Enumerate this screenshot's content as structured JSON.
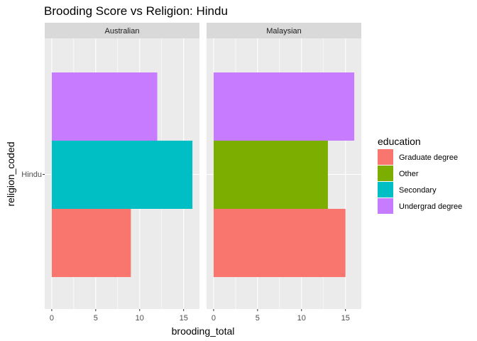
{
  "chart_data": {
    "type": "bar",
    "orientation": "horizontal",
    "title": "Brooding Score vs Religion: Hindu",
    "xlabel": "brooding_total",
    "ylabel": "religion_coded",
    "xlim": [
      -0.8,
      16.8
    ],
    "x_ticks": [
      0,
      5,
      10,
      15
    ],
    "categories": [
      "Hindu"
    ],
    "grid": true,
    "legend_position": "right",
    "legend_title": "education",
    "legend": [
      {
        "name": "Graduate degree",
        "color": "#F8766D"
      },
      {
        "name": "Other",
        "color": "#7CAE00"
      },
      {
        "name": "Secondary",
        "color": "#00BFC4"
      },
      {
        "name": "Undergrad degree",
        "color": "#C77CFF"
      }
    ],
    "facets": [
      {
        "label": "Australian",
        "bars": [
          {
            "group": "Undergrad degree",
            "value": 12
          },
          {
            "group": "Secondary",
            "value": 16
          },
          {
            "group": "Graduate degree",
            "value": 9
          }
        ]
      },
      {
        "label": "Malaysian",
        "bars": [
          {
            "group": "Undergrad degree",
            "value": 16
          },
          {
            "group": "Other",
            "value": 13
          },
          {
            "group": "Graduate degree",
            "value": 15
          }
        ]
      }
    ]
  }
}
